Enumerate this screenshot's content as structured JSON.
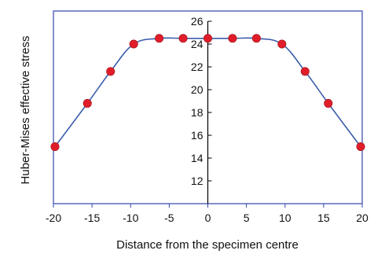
{
  "chart_data": {
    "type": "line",
    "title": "",
    "xlabel": "Distance from the specimen centre",
    "ylabel": "Huber-Mises effective stress",
    "xlim": [
      -20,
      20
    ],
    "ylim": [
      10,
      26
    ],
    "xticks": [
      -20,
      -15,
      -10,
      -5,
      0,
      5,
      10,
      15,
      20
    ],
    "yticks": [
      12,
      14,
      16,
      18,
      20,
      22,
      24,
      26
    ],
    "grid": false,
    "legend": "none",
    "series": [
      {
        "x": [
          -19.8,
          -15.6,
          -12.6,
          -9.6,
          -6.3,
          -3.2,
          0,
          3.2,
          6.3,
          9.6,
          12.6,
          15.6,
          19.8
        ],
        "y": [
          15.0,
          18.8,
          21.6,
          24.0,
          24.5,
          24.5,
          24.5,
          24.5,
          24.5,
          24.0,
          21.6,
          18.8,
          15.0
        ]
      }
    ],
    "colors": {
      "line": "#3b5eab",
      "marker": "#e11d2a",
      "frame": "#3344aa"
    }
  }
}
